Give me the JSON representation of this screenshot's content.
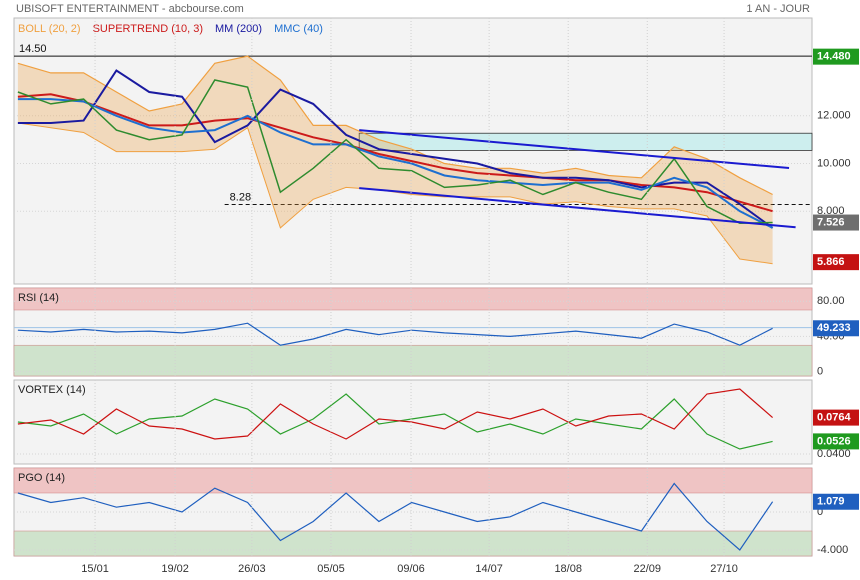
{
  "chart_data": [
    {
      "type": "line",
      "title": "UBISOFT ENTERTAINMENT - abcbourse.com",
      "subtitle": "1 AN - JOUR",
      "x": [
        0,
        1,
        2,
        3,
        4,
        5,
        6,
        7,
        8,
        9,
        10,
        11,
        12,
        13,
        14,
        15,
        16,
        17,
        18,
        19,
        20,
        21,
        22,
        23
      ],
      "xlim": [
        -0.12,
        24.2
      ],
      "ylim": [
        4.95,
        16.1
      ],
      "yticks": [
        {
          "value": 12,
          "label": "12.000"
        },
        {
          "value": 10,
          "label": "10.000"
        },
        {
          "value": 8,
          "label": "8.000"
        }
      ],
      "grid": true,
      "close": {
        "color": "#2e8b2e",
        "values": [
          13.0,
          12.5,
          12.7,
          11.4,
          11.0,
          11.2,
          13.5,
          13.2,
          8.8,
          9.8,
          11.0,
          9.8,
          9.7,
          9.0,
          9.1,
          9.3,
          8.7,
          9.2,
          8.8,
          8.5,
          10.2,
          8.2,
          7.5,
          7.526
        ]
      },
      "series": [
        {
          "name": "BOLL (20, 2)",
          "color": "#f0a040",
          "values": [
            14.2,
            13.8,
            13.8,
            13.0,
            12.2,
            12.5,
            14.2,
            14.5,
            13.5,
            11.6,
            11.6,
            11.0,
            10.6,
            10.0,
            9.8,
            9.8,
            9.6,
            9.8,
            9.5,
            9.4,
            10.7,
            10.2,
            9.4,
            8.7
          ],
          "lower": [
            11.7,
            11.5,
            11.3,
            10.5,
            10.5,
            10.5,
            10.6,
            11.5,
            7.3,
            8.5,
            9.0,
            8.9,
            8.7,
            8.6,
            8.6,
            8.6,
            8.3,
            8.4,
            8.2,
            8.1,
            8.1,
            7.8,
            6.0,
            5.8
          ]
        },
        {
          "name": "SUPERTREND (10, 3)",
          "color": "#cc1a1a",
          "values": [
            12.8,
            12.9,
            12.6,
            12.1,
            11.6,
            11.6,
            11.8,
            11.9,
            11.5,
            11.1,
            10.8,
            10.4,
            10.1,
            9.8,
            9.6,
            9.5,
            9.4,
            9.3,
            9.3,
            9.1,
            9.0,
            8.8,
            8.4,
            8.0
          ]
        },
        {
          "name": "MM (200)",
          "color": "#1a1aa0",
          "values": [
            11.7,
            11.7,
            11.8,
            13.9,
            13.0,
            12.8,
            10.9,
            11.6,
            13.1,
            12.5,
            11.2,
            10.6,
            10.4,
            10.2,
            10.0,
            9.6,
            9.4,
            9.4,
            9.3,
            9.0,
            9.2,
            9.2,
            8.3,
            7.3
          ]
        },
        {
          "name": "MMC (40)",
          "color": "#1e6fd0",
          "values": [
            12.7,
            12.7,
            12.6,
            12.0,
            11.5,
            11.3,
            11.4,
            12.0,
            11.3,
            10.8,
            10.8,
            10.3,
            10.0,
            9.5,
            9.3,
            9.2,
            9.1,
            9.2,
            9.2,
            8.9,
            9.4,
            9.0,
            8.0,
            7.3
          ]
        }
      ],
      "hlines": [
        {
          "value": 14.5,
          "label": "14.50",
          "x0": -0.12
        },
        {
          "value": 8.28,
          "label": "8.28",
          "x0": 6.3,
          "dashed": true
        }
      ],
      "channels": [
        {
          "x": [
            10.4,
            23.5
          ],
          "y": [
            11.4,
            9.81
          ],
          "color": "#1a1ad0"
        },
        {
          "x": [
            10.4,
            23.7
          ],
          "y": [
            8.97,
            7.33
          ],
          "color": "#1a1ad0"
        }
      ],
      "boxes": [
        {
          "x": [
            10.4,
            24.2
          ],
          "y": [
            10.55,
            11.27
          ],
          "color": "#cdeeee"
        }
      ],
      "last_labels": [
        {
          "value": 14.48,
          "label": "14.480",
          "color": "#1f9a1f"
        },
        {
          "value": 7.526,
          "label": "7.526",
          "color": "#6e6e6e"
        },
        {
          "value": 5.866,
          "label": "5.866",
          "color": "#c41212"
        }
      ]
    },
    {
      "type": "line",
      "title": "RSI (14)",
      "ylim": [
        -5,
        95
      ],
      "yticks": [
        {
          "value": 80,
          "label": "80.00"
        },
        {
          "value": 40,
          "label": "40.00"
        },
        0
      ],
      "grid": true,
      "zones": [
        {
          "from": 70,
          "to": 95,
          "color": "#efc4c4"
        },
        {
          "from": -5,
          "to": 30,
          "color": "#cfe3cc"
        }
      ],
      "hlines": [
        {
          "value": 50,
          "color": "#9ec3e6"
        }
      ],
      "series": [
        {
          "color": "#1f5fbf",
          "values": [
            47,
            45,
            48,
            45,
            46,
            44,
            48,
            55,
            30,
            37,
            48,
            42,
            47,
            44,
            42,
            40,
            43,
            46,
            42,
            38,
            54,
            45,
            30,
            49.233
          ]
        }
      ],
      "last_labels": [
        {
          "value": 49.233,
          "label": "49.233",
          "color": "#1f5fbf"
        }
      ]
    },
    {
      "type": "line",
      "title": "VORTEX (14)",
      "ylim": [
        0.03,
        0.114
      ],
      "yticks": [
        {
          "value": 0.04,
          "label": "0.0400"
        }
      ],
      "grid": true,
      "series": [
        {
          "color": "#2ca02c",
          "values": [
            0.072,
            0.068,
            0.08,
            0.06,
            0.075,
            0.078,
            0.095,
            0.085,
            0.06,
            0.075,
            0.1,
            0.07,
            0.075,
            0.08,
            0.062,
            0.07,
            0.06,
            0.075,
            0.07,
            0.065,
            0.095,
            0.06,
            0.045,
            0.0526
          ]
        },
        {
          "color": "#cc1111",
          "values": [
            0.07,
            0.074,
            0.06,
            0.085,
            0.068,
            0.065,
            0.055,
            0.058,
            0.09,
            0.07,
            0.055,
            0.075,
            0.072,
            0.065,
            0.082,
            0.075,
            0.085,
            0.068,
            0.078,
            0.08,
            0.065,
            0.1,
            0.105,
            0.0764
          ]
        }
      ],
      "last_labels": [
        {
          "value": 0.0764,
          "label": "0.0764",
          "color": "#c41212"
        },
        {
          "value": 0.0526,
          "label": "0.0526",
          "color": "#1f9a1f"
        }
      ]
    },
    {
      "type": "line",
      "title": "PGO (14)",
      "ylim": [
        -4.63,
        4.63
      ],
      "yticks": [
        0,
        {
          "value": -4,
          "label": "-4.000"
        }
      ],
      "grid": true,
      "zones": [
        {
          "from": 2,
          "to": 4.63,
          "color": "#efc4c4"
        },
        {
          "from": -4.63,
          "to": -2,
          "color": "#cfe3cc"
        }
      ],
      "series": [
        {
          "color": "#1f5fbf",
          "values": [
            2,
            1,
            1.5,
            0.5,
            1,
            0,
            2.5,
            1,
            -3,
            -1,
            2,
            -1,
            1,
            0,
            -1,
            -0.5,
            1,
            0,
            -1,
            -2,
            3,
            -1,
            -4,
            1.079
          ]
        }
      ],
      "last_labels": [
        {
          "value": 1.079,
          "label": "1.079",
          "color": "#1f5fbf"
        }
      ],
      "xticks": [
        {
          "value": 2.35,
          "label": "15/01"
        },
        {
          "value": 4.79,
          "label": "19/02"
        },
        {
          "value": 7.13,
          "label": "26/03"
        },
        {
          "value": 9.54,
          "label": "05/05"
        },
        {
          "value": 11.98,
          "label": "09/06"
        },
        {
          "value": 14.36,
          "label": "14/07"
        },
        {
          "value": 16.77,
          "label": "18/08"
        },
        {
          "value": 19.18,
          "label": "22/09"
        },
        {
          "value": 21.52,
          "label": "27/10"
        }
      ]
    }
  ]
}
